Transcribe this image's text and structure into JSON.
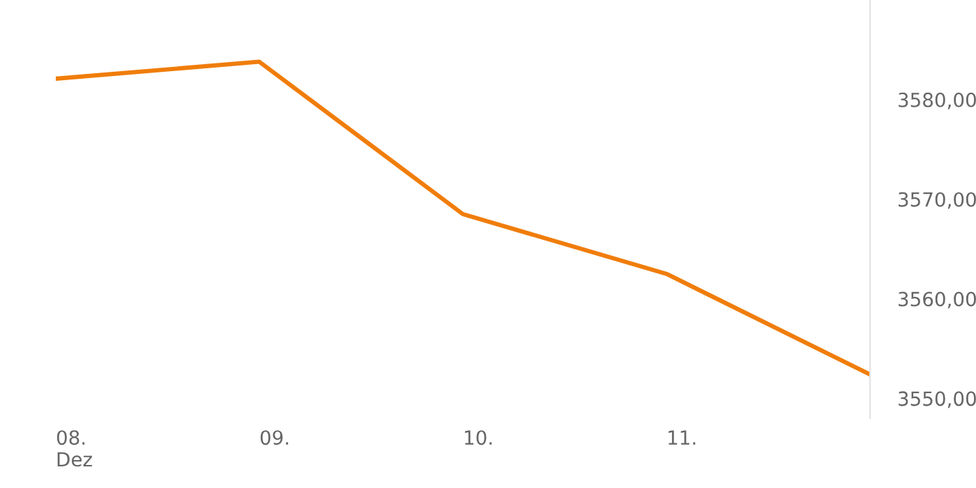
{
  "chart_data": {
    "type": "line",
    "categories": [
      "08.\nDez",
      "09.",
      "10.",
      "11.",
      null
    ],
    "series": [
      {
        "color": "#f07d0a",
        "values": [
          3582.1,
          3583.8,
          3568.5,
          3562.5,
          3552.4
        ]
      }
    ],
    "ylim": [
      3548,
      3590
    ],
    "yticks": [
      {
        "value": 3550,
        "label": "3550,00"
      },
      {
        "value": 3560,
        "label": "3560,00"
      },
      {
        "value": 3570,
        "label": "3570,00"
      },
      {
        "value": 3580,
        "label": "3580,00"
      }
    ],
    "grid": false,
    "legend": false,
    "marker": "none",
    "line_style": "solid"
  }
}
